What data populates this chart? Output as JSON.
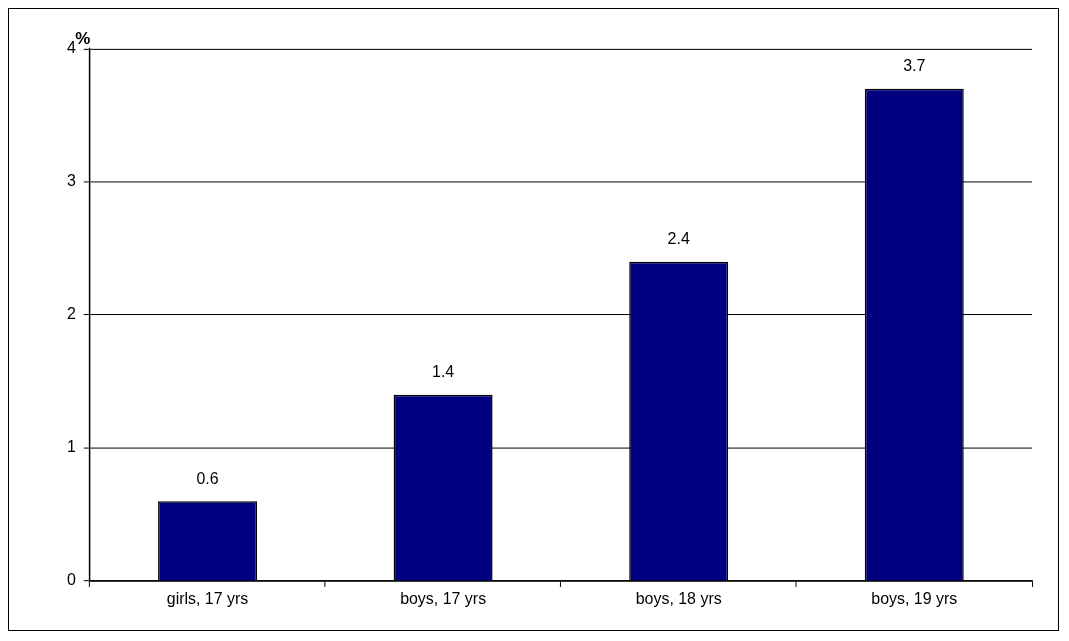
{
  "chart_data": {
    "type": "bar",
    "ylabel": "%",
    "categories": [
      "girls, 17 yrs",
      "boys, 17 yrs",
      "boys, 18 yrs",
      "boys, 19 yrs"
    ],
    "values": [
      0.6,
      1.4,
      2.4,
      3.7
    ],
    "color": "#000080",
    "ylim": [
      0,
      4
    ],
    "yticks": [
      0,
      1,
      2,
      3,
      4
    ],
    "grid": "y",
    "data_labels": true
  }
}
